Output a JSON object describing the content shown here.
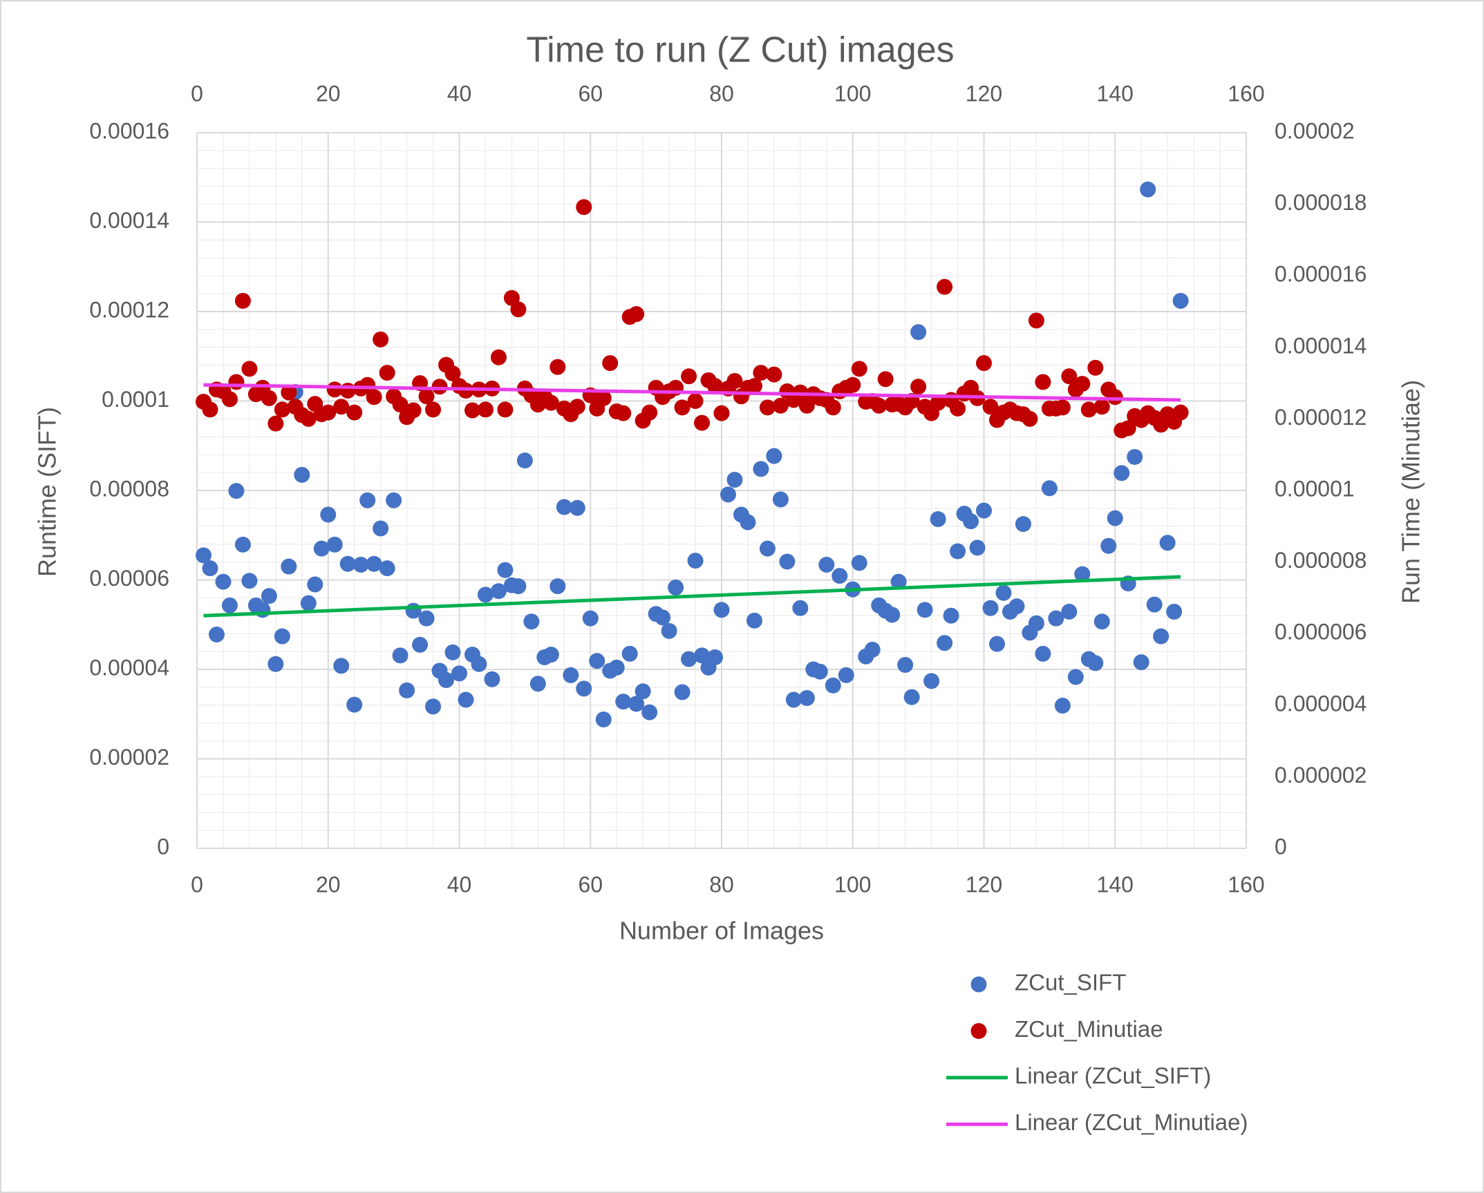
{
  "chart_data": {
    "type": "scatter",
    "title": "Time to run (Z Cut) images",
    "x_label": "Number of Images",
    "y_label": "Runtime (SIFT)",
    "y2_label": "Run Time (Minutiae)",
    "xlim": [
      0,
      160
    ],
    "xticks": [
      0,
      20,
      40,
      60,
      80,
      100,
      120,
      140,
      160
    ],
    "top_x_axis": true,
    "ylim": [
      0,
      0.00016
    ],
    "yticks": [
      0,
      2e-05,
      4e-05,
      6e-05,
      8e-05,
      0.0001,
      0.00012,
      0.00014,
      0.00016
    ],
    "y2lim": [
      0,
      2e-05
    ],
    "y2ticks": [
      0,
      2e-06,
      4e-06,
      6e-06,
      8e-06,
      1e-05,
      1.2e-05,
      1.4e-05,
      1.6e-05,
      1.8e-05,
      2e-05
    ],
    "grid": true,
    "minor_grid": true,
    "legend": "bottom-right",
    "x": [
      1,
      2,
      3,
      4,
      5,
      6,
      7,
      8,
      9,
      10,
      11,
      12,
      13,
      14,
      15,
      16,
      17,
      18,
      19,
      20,
      21,
      22,
      23,
      24,
      25,
      26,
      27,
      28,
      29,
      30,
      31,
      32,
      33,
      34,
      35,
      36,
      37,
      38,
      39,
      40,
      41,
      42,
      43,
      44,
      45,
      46,
      47,
      48,
      49,
      50,
      51,
      52,
      53,
      54,
      55,
      56,
      57,
      58,
      59,
      60,
      61,
      62,
      63,
      64,
      65,
      66,
      67,
      68,
      69,
      70,
      71,
      72,
      73,
      74,
      75,
      76,
      77,
      78,
      79,
      80,
      81,
      82,
      83,
      84,
      85,
      86,
      87,
      88,
      89,
      90,
      91,
      92,
      93,
      94,
      95,
      96,
      97,
      98,
      99,
      100,
      101,
      102,
      103,
      104,
      105,
      106,
      107,
      108,
      109,
      110,
      111,
      112,
      113,
      114,
      115,
      116,
      117,
      118,
      119,
      120,
      121,
      122,
      123,
      124,
      125,
      126,
      127,
      128,
      129,
      130,
      131,
      132,
      133,
      134,
      135,
      136,
      137,
      138,
      139,
      140,
      141,
      142,
      143,
      144,
      145,
      146,
      147,
      148,
      149,
      150
    ],
    "series": [
      {
        "name": "ZCut_SIFT",
        "color": "#4472c4",
        "values": [
          6.55e-05,
          6.26e-05,
          4.78e-05,
          5.96e-05,
          5.43e-05,
          7.99e-05,
          6.79e-05,
          5.98e-05,
          5.43e-05,
          5.33e-05,
          5.64e-05,
          4.12e-05,
          4.74e-05,
          6.3e-05,
          0.000102,
          8.35e-05,
          5.48e-05,
          5.9e-05,
          6.7e-05,
          7.46e-05,
          6.79e-05,
          4.08e-05,
          6.36e-05,
          3.21e-05,
          6.34e-05,
          7.78e-05,
          6.36e-05,
          7.15e-05,
          6.26e-05,
          7.78e-05,
          4.31e-05,
          3.53e-05,
          5.31e-05,
          4.55e-05,
          5.14e-05,
          3.17e-05,
          3.97e-05,
          3.76e-05,
          4.38e-05,
          3.91e-05,
          3.32e-05,
          4.33e-05,
          4.12e-05,
          5.67e-05,
          3.78e-05,
          5.75e-05,
          6.22e-05,
          5.88e-05,
          5.86e-05,
          8.67e-05,
          5.07e-05,
          3.68e-05,
          4.27e-05,
          4.33e-05,
          5.86e-05,
          7.63e-05,
          3.87e-05,
          7.61e-05,
          3.57e-05,
          5.14e-05,
          4.19e-05,
          2.88e-05,
          3.97e-05,
          4.04e-05,
          3.28e-05,
          4.35e-05,
          3.23e-05,
          3.51e-05,
          3.04e-05,
          5.24e-05,
          5.16e-05,
          4.86e-05,
          5.83e-05,
          3.49e-05,
          4.23e-05,
          6.43e-05,
          4.31e-05,
          4.04e-05,
          4.27e-05,
          5.33e-05,
          7.91e-05,
          8.24e-05,
          7.46e-05,
          7.29e-05,
          5.09e-05,
          8.48e-05,
          6.7e-05,
          8.77e-05,
          7.8e-05,
          6.41e-05,
          3.32e-05,
          5.37e-05,
          3.36e-05,
          4e-05,
          3.95e-05,
          6.34e-05,
          3.64e-05,
          6.09e-05,
          3.87e-05,
          5.79e-05,
          6.38e-05,
          4.29e-05,
          4.44e-05,
          5.43e-05,
          5.31e-05,
          5.22e-05,
          5.96e-05,
          4.1e-05,
          3.38e-05,
          0.0001154,
          5.33e-05,
          3.74e-05,
          7.36e-05,
          4.59e-05,
          5.2e-05,
          6.64e-05,
          7.48e-05,
          7.31e-05,
          6.72e-05,
          7.55e-05,
          5.37e-05,
          4.57e-05,
          5.71e-05,
          5.29e-05,
          5.41e-05,
          7.25e-05,
          4.82e-05,
          5.03e-05,
          4.35e-05,
          8.05e-05,
          5.14e-05,
          3.19e-05,
          5.29e-05,
          3.83e-05,
          6.13e-05,
          4.23e-05,
          4.14e-05,
          5.07e-05,
          6.76e-05,
          7.38e-05,
          8.39e-05,
          5.92e-05,
          8.75e-05,
          4.16e-05,
          0.0001473,
          5.45e-05,
          4.74e-05,
          6.83e-05,
          5.29e-05,
          0.0001224
        ]
      },
      {
        "name": "ZCut_Minutiae",
        "color": "#c00000",
        "axis": "y2",
        "values": [
          1.248e-05,
          1.226e-05,
          1.282e-05,
          1.277e-05,
          1.255e-05,
          1.303e-05,
          1.53e-05,
          1.34e-05,
          1.269e-05,
          1.287e-05,
          1.258e-05,
          1.187e-05,
          1.226e-05,
          1.274e-05,
          1.234e-05,
          1.211e-05,
          1.2e-05,
          1.242e-05,
          1.213e-05,
          1.218e-05,
          1.282e-05,
          1.234e-05,
          1.279e-05,
          1.218e-05,
          1.285e-05,
          1.295e-05,
          1.261e-05,
          1.422e-05,
          1.329e-05,
          1.263e-05,
          1.24e-05,
          1.205e-05,
          1.224e-05,
          1.3e-05,
          1.263e-05,
          1.226e-05,
          1.29e-05,
          1.351e-05,
          1.327e-05,
          1.292e-05,
          1.279e-05,
          1.224e-05,
          1.282e-05,
          1.226e-05,
          1.285e-05,
          1.372e-05,
          1.226e-05,
          1.538e-05,
          1.506e-05,
          1.285e-05,
          1.266e-05,
          1.24e-05,
          1.261e-05,
          1.245e-05,
          1.345e-05,
          1.229e-05,
          1.213e-05,
          1.234e-05,
          1.792e-05,
          1.266e-05,
          1.229e-05,
          1.258e-05,
          1.356e-05,
          1.221e-05,
          1.216e-05,
          1.485e-05,
          1.493e-05,
          1.195e-05,
          1.218e-05,
          1.287e-05,
          1.261e-05,
          1.277e-05,
          1.287e-05,
          1.232e-05,
          1.319e-05,
          1.25e-05,
          1.189e-05,
          1.308e-05,
          1.292e-05,
          1.216e-05,
          1.285e-05,
          1.306e-05,
          1.263e-05,
          1.287e-05,
          1.292e-05,
          1.329e-05,
          1.232e-05,
          1.324e-05,
          1.237e-05,
          1.277e-05,
          1.253e-05,
          1.274e-05,
          1.237e-05,
          1.269e-05,
          1.258e-05,
          1.253e-05,
          1.232e-05,
          1.277e-05,
          1.287e-05,
          1.295e-05,
          1.34e-05,
          1.248e-05,
          1.25e-05,
          1.237e-05,
          1.311e-05,
          1.24e-05,
          1.242e-05,
          1.232e-05,
          1.25e-05,
          1.29e-05,
          1.234e-05,
          1.216e-05,
          1.245e-05,
          1.569e-05,
          1.253e-05,
          1.229e-05,
          1.271e-05,
          1.287e-05,
          1.258e-05,
          1.356e-05,
          1.234e-05,
          1.197e-05,
          1.218e-05,
          1.226e-05,
          1.216e-05,
          1.213e-05,
          1.2e-05,
          1.475e-05,
          1.303e-05,
          1.229e-05,
          1.229e-05,
          1.232e-05,
          1.319e-05,
          1.282e-05,
          1.298e-05,
          1.226e-05,
          1.343e-05,
          1.234e-05,
          1.282e-05,
          1.261e-05,
          1.168e-05,
          1.174e-05,
          1.208e-05,
          1.197e-05,
          1.216e-05,
          1.203e-05,
          1.184e-05,
          1.213e-05,
          1.192e-05,
          1.218e-05
        ]
      },
      {
        "name": "Linear (ZCut_SIFT)",
        "type": "line",
        "color": "#00b050",
        "x": [
          1,
          150
        ],
        "values": [
          5.2e-05,
          6.07e-05
        ]
      },
      {
        "name": "Linear (ZCut_Minutiae)",
        "type": "line",
        "color": "#e83ee8",
        "axis": "y2",
        "x": [
          1,
          150
        ],
        "values": [
          1.295e-05,
          1.253e-05
        ]
      }
    ]
  }
}
